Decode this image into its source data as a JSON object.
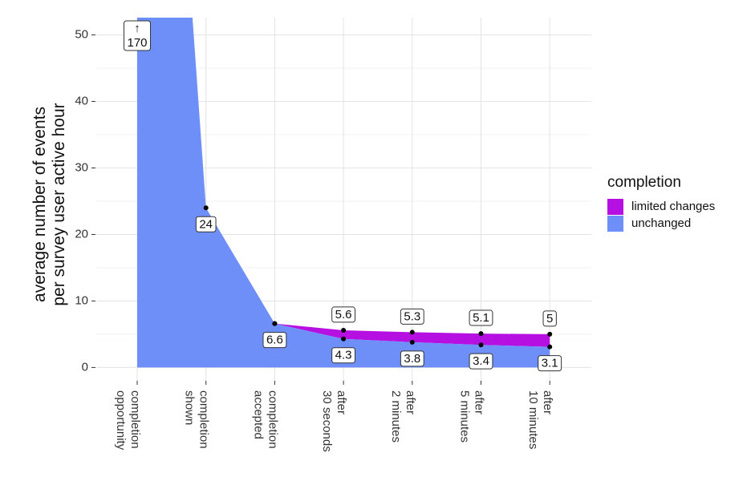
{
  "chart_data": {
    "type": "area",
    "y_label": "average number of events\nper survey user active hour",
    "categories": [
      "completion\nopportunity",
      "completion\nshown",
      "completion\naccepted",
      "after\n30 seconds",
      "after\n2 minutes",
      "after\n5 minutes",
      "after\n10 minutes"
    ],
    "series": [
      {
        "name": "unchanged",
        "color": "#6e8ff7",
        "values": [
          170,
          24,
          6.6,
          4.3,
          3.8,
          3.4,
          3.1
        ],
        "value_labels": [
          "↑\n170",
          "24",
          "6.6",
          "4.3",
          "3.8",
          "3.4",
          "3.1"
        ]
      },
      {
        "name": "limited changes",
        "color": "#b50fe2",
        "values": [
          null,
          null,
          6.6,
          5.6,
          5.3,
          5.1,
          5
        ],
        "value_labels": [
          null,
          null,
          null,
          "5.6",
          "5.3",
          "5.1",
          "5"
        ]
      }
    ],
    "legend_title": "completion",
    "legend_order": [
      1,
      0
    ],
    "legend_position": "right",
    "ylim": [
      -2,
      52.6
    ],
    "yticks": [
      0,
      10,
      20,
      30,
      40,
      50
    ],
    "grid": true
  }
}
